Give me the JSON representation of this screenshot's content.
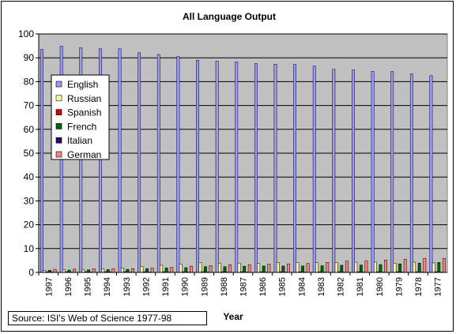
{
  "chart_data": {
    "type": "bar",
    "title": "All Language Output",
    "xlabel": "Year",
    "ylabel": "",
    "ylim": [
      0,
      100
    ],
    "yticks": [
      0,
      10,
      20,
      30,
      40,
      50,
      60,
      70,
      80,
      90,
      100
    ],
    "grid": true,
    "legend_position": "left",
    "categories": [
      "1997",
      "1996",
      "1995",
      "1994",
      "1993",
      "1992",
      "1991",
      "1990",
      "1989",
      "1988",
      "1987",
      "1986",
      "1985",
      "1984",
      "1983",
      "1982",
      "1981",
      "1980",
      "1979",
      "1978",
      "1977"
    ],
    "series": [
      {
        "name": "English",
        "color": "#9999ff",
        "values": [
          93.5,
          94.9,
          94.2,
          93.8,
          93.8,
          92.1,
          91.4,
          90.5,
          89.0,
          88.6,
          88.3,
          87.6,
          87.3,
          87.2,
          86.6,
          85.2,
          84.9,
          84.3,
          84.2,
          83.2,
          82.5
        ]
      },
      {
        "name": "Russian",
        "color": "#ffff99",
        "values": [
          0.8,
          1.1,
          1.0,
          1.5,
          1.8,
          2.5,
          3.0,
          3.4,
          4.2,
          3.9,
          3.9,
          3.7,
          4.1,
          4.2,
          4.1,
          4.1,
          4.3,
          4.3,
          3.9,
          4.3,
          4.0
        ]
      },
      {
        "name": "Spanish",
        "color": "#cc0000",
        "values": [
          0.3,
          0.3,
          0.3,
          0.3,
          0.3,
          0.3,
          0.3,
          0.3,
          0.3,
          0.3,
          0.3,
          0.3,
          0.3,
          0.3,
          0.3,
          0.3,
          0.3,
          0.3,
          0.3,
          0.3,
          0.3
        ]
      },
      {
        "name": "French",
        "color": "#006600",
        "values": [
          0.9,
          1.0,
          1.1,
          1.2,
          1.3,
          1.6,
          1.9,
          2.0,
          2.4,
          2.4,
          2.6,
          2.7,
          2.7,
          2.7,
          2.8,
          3.0,
          3.1,
          3.3,
          3.6,
          3.9,
          4.2
        ]
      },
      {
        "name": "Italian",
        "color": "#330066",
        "values": [
          0.1,
          0.1,
          0.1,
          0.1,
          0.1,
          0.1,
          0.1,
          0.1,
          0.1,
          0.1,
          0.1,
          0.1,
          0.1,
          0.1,
          0.1,
          0.1,
          0.1,
          0.1,
          0.1,
          0.1,
          0.1
        ]
      },
      {
        "name": "German",
        "color": "#ff8080",
        "values": [
          1.3,
          1.4,
          1.5,
          1.6,
          1.6,
          1.9,
          2.1,
          2.6,
          2.9,
          3.2,
          3.2,
          3.5,
          3.6,
          3.8,
          4.2,
          4.8,
          4.8,
          5.2,
          5.5,
          5.9,
          5.9
        ]
      }
    ],
    "colors": {
      "plot_background": "#c0c0c0",
      "gridline": "#000000"
    }
  },
  "source": "Source: ISI's Web of Science 1977-98"
}
